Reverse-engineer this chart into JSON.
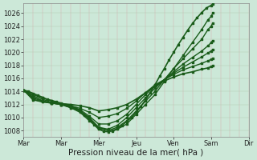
{
  "background_color": "#cce8d8",
  "line_color": "#1a5c1a",
  "ylim": [
    1007.0,
    1027.5
  ],
  "xlim": [
    0.0,
    144.0
  ],
  "yticks": [
    1008,
    1010,
    1012,
    1014,
    1016,
    1018,
    1020,
    1022,
    1024,
    1026
  ],
  "xlabel": "Pression niveau de la mer( hPa )",
  "day_ticks_hours": [
    0,
    24,
    48,
    72,
    96,
    120,
    144
  ],
  "day_labels": [
    "Mar",
    "Mar",
    "Mer",
    "Jeu",
    "Ven",
    "Sam",
    "Dir"
  ],
  "lines": [
    {
      "points": [
        [
          0,
          1014.2
        ],
        [
          3,
          1014.0
        ],
        [
          6,
          1013.7
        ],
        [
          9,
          1013.4
        ],
        [
          12,
          1013.1
        ],
        [
          15,
          1012.8
        ],
        [
          18,
          1012.6
        ],
        [
          21,
          1012.4
        ],
        [
          24,
          1012.2
        ],
        [
          27,
          1012.0
        ],
        [
          30,
          1011.8
        ],
        [
          33,
          1011.5
        ],
        [
          36,
          1011.0
        ],
        [
          39,
          1010.4
        ],
        [
          42,
          1009.7
        ],
        [
          45,
          1008.9
        ],
        [
          48,
          1008.2
        ],
        [
          51,
          1007.9
        ],
        [
          54,
          1007.8
        ],
        [
          57,
          1008.0
        ],
        [
          60,
          1008.3
        ],
        [
          63,
          1008.8
        ],
        [
          66,
          1009.4
        ],
        [
          69,
          1010.0
        ],
        [
          72,
          1010.8
        ],
        [
          75,
          1011.7
        ],
        [
          78,
          1012.7
        ],
        [
          81,
          1013.8
        ],
        [
          84,
          1015.0
        ],
        [
          87,
          1016.3
        ],
        [
          90,
          1017.5
        ],
        [
          93,
          1018.8
        ],
        [
          96,
          1020.0
        ],
        [
          99,
          1021.2
        ],
        [
          102,
          1022.3
        ],
        [
          105,
          1023.4
        ],
        [
          108,
          1024.4
        ],
        [
          111,
          1025.3
        ],
        [
          114,
          1026.1
        ],
        [
          117,
          1026.8
        ],
        [
          120,
          1027.2
        ],
        [
          121,
          1027.4
        ]
      ],
      "lw": 1.2
    },
    {
      "points": [
        [
          0,
          1014.2
        ],
        [
          6,
          1013.5
        ],
        [
          12,
          1013.0
        ],
        [
          18,
          1012.5
        ],
        [
          24,
          1012.0
        ],
        [
          30,
          1011.5
        ],
        [
          36,
          1011.0
        ],
        [
          42,
          1010.0
        ],
        [
          48,
          1008.5
        ],
        [
          54,
          1008.0
        ],
        [
          57,
          1007.9
        ],
        [
          60,
          1008.2
        ],
        [
          66,
          1009.0
        ],
        [
          72,
          1010.5
        ],
        [
          78,
          1012.0
        ],
        [
          84,
          1013.5
        ],
        [
          90,
          1015.5
        ],
        [
          96,
          1017.5
        ],
        [
          102,
          1019.5
        ],
        [
          108,
          1021.5
        ],
        [
          114,
          1023.5
        ],
        [
          118,
          1025.0
        ],
        [
          120,
          1025.5
        ],
        [
          121,
          1026.0
        ]
      ],
      "lw": 1.0
    },
    {
      "points": [
        [
          0,
          1014.2
        ],
        [
          6,
          1013.3
        ],
        [
          12,
          1012.8
        ],
        [
          18,
          1012.3
        ],
        [
          24,
          1012.0
        ],
        [
          30,
          1011.5
        ],
        [
          36,
          1010.8
        ],
        [
          42,
          1009.5
        ],
        [
          48,
          1008.3
        ],
        [
          54,
          1008.0
        ],
        [
          60,
          1008.5
        ],
        [
          66,
          1009.5
        ],
        [
          72,
          1011.0
        ],
        [
          78,
          1012.5
        ],
        [
          84,
          1014.0
        ],
        [
          90,
          1015.8
        ],
        [
          96,
          1017.5
        ],
        [
          102,
          1019.0
        ],
        [
          108,
          1020.5
        ],
        [
          114,
          1022.0
        ],
        [
          118,
          1023.5
        ],
        [
          120,
          1024.0
        ],
        [
          121,
          1024.5
        ]
      ],
      "lw": 1.0
    },
    {
      "points": [
        [
          0,
          1014.2
        ],
        [
          6,
          1013.1
        ],
        [
          12,
          1012.6
        ],
        [
          18,
          1012.2
        ],
        [
          24,
          1012.0
        ],
        [
          30,
          1011.6
        ],
        [
          36,
          1011.0
        ],
        [
          42,
          1009.8
        ],
        [
          48,
          1008.5
        ],
        [
          54,
          1008.2
        ],
        [
          60,
          1008.8
        ],
        [
          66,
          1010.0
        ],
        [
          72,
          1011.5
        ],
        [
          78,
          1013.0
        ],
        [
          84,
          1014.5
        ],
        [
          90,
          1015.8
        ],
        [
          96,
          1017.0
        ],
        [
          102,
          1018.2
        ],
        [
          108,
          1019.2
        ],
        [
          114,
          1020.2
        ],
        [
          118,
          1021.0
        ],
        [
          120,
          1021.5
        ],
        [
          121,
          1021.8
        ]
      ],
      "lw": 1.0
    },
    {
      "points": [
        [
          0,
          1014.2
        ],
        [
          6,
          1013.0
        ],
        [
          12,
          1012.5
        ],
        [
          18,
          1012.2
        ],
        [
          24,
          1012.0
        ],
        [
          30,
          1011.7
        ],
        [
          36,
          1011.2
        ],
        [
          42,
          1010.2
        ],
        [
          48,
          1009.0
        ],
        [
          54,
          1009.0
        ],
        [
          60,
          1009.5
        ],
        [
          66,
          1010.5
        ],
        [
          72,
          1012.0
        ],
        [
          78,
          1013.5
        ],
        [
          84,
          1014.8
        ],
        [
          90,
          1015.8
        ],
        [
          96,
          1016.8
        ],
        [
          102,
          1017.7
        ],
        [
          108,
          1018.5
        ],
        [
          114,
          1019.3
        ],
        [
          118,
          1019.9
        ],
        [
          120,
          1020.2
        ],
        [
          121,
          1020.4
        ]
      ],
      "lw": 1.0
    },
    {
      "points": [
        [
          0,
          1014.2
        ],
        [
          6,
          1012.8
        ],
        [
          12,
          1012.4
        ],
        [
          18,
          1012.2
        ],
        [
          24,
          1012.0
        ],
        [
          30,
          1011.8
        ],
        [
          36,
          1011.4
        ],
        [
          42,
          1010.8
        ],
        [
          48,
          1010.0
        ],
        [
          54,
          1010.2
        ],
        [
          60,
          1010.6
        ],
        [
          66,
          1011.4
        ],
        [
          72,
          1012.5
        ],
        [
          78,
          1013.8
        ],
        [
          84,
          1015.0
        ],
        [
          90,
          1015.8
        ],
        [
          96,
          1016.6
        ],
        [
          102,
          1017.3
        ],
        [
          108,
          1017.8
        ],
        [
          114,
          1018.3
        ],
        [
          118,
          1018.7
        ],
        [
          120,
          1018.9
        ],
        [
          121,
          1019.0
        ]
      ],
      "lw": 1.0
    },
    {
      "points": [
        [
          0,
          1014.2
        ],
        [
          6,
          1012.7
        ],
        [
          12,
          1012.4
        ],
        [
          18,
          1012.2
        ],
        [
          24,
          1012.1
        ],
        [
          30,
          1012.0
        ],
        [
          36,
          1011.8
        ],
        [
          42,
          1011.5
        ],
        [
          48,
          1011.0
        ],
        [
          54,
          1011.2
        ],
        [
          60,
          1011.5
        ],
        [
          66,
          1012.0
        ],
        [
          72,
          1012.8
        ],
        [
          78,
          1013.8
        ],
        [
          84,
          1014.8
        ],
        [
          90,
          1015.6
        ],
        [
          96,
          1016.2
        ],
        [
          102,
          1016.7
        ],
        [
          108,
          1017.0
        ],
        [
          114,
          1017.4
        ],
        [
          118,
          1017.6
        ],
        [
          120,
          1017.8
        ],
        [
          121,
          1017.9
        ]
      ],
      "lw": 1.2
    }
  ],
  "vgrid_hours": [
    0,
    24,
    48,
    72,
    96,
    120,
    144
  ],
  "vgrid_color": "#d8a8a8",
  "hgrid_color": "#b0c8b0",
  "tick_fontsize": 6,
  "xlabel_fontsize": 7.5
}
